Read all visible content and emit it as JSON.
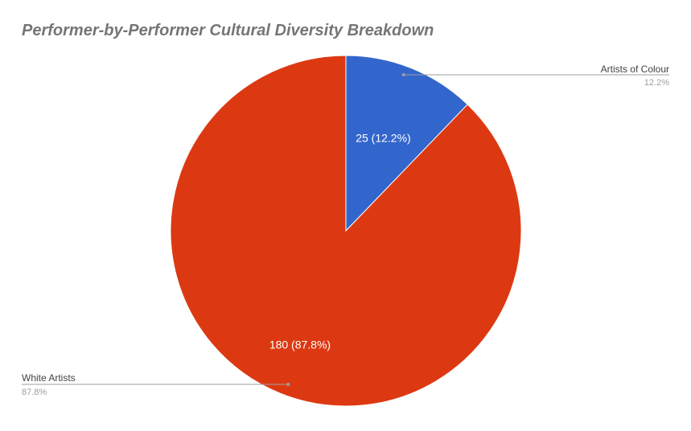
{
  "chart_data": {
    "type": "pie",
    "title": "Performer-by-Performer Cultural Diversity Breakdown",
    "slices": [
      {
        "label": "Artists of Colour",
        "value": 25,
        "percent": "12.2%",
        "slice_label": "25 (12.2%)",
        "color": "#3366cc"
      },
      {
        "label": "White Artists",
        "value": 180,
        "percent": "87.8%",
        "slice_label": "180 (87.8%)",
        "color": "#dc3912"
      }
    ],
    "start_angle_deg": 0,
    "direction": "clockwise",
    "legend": "labeled callout lines"
  },
  "colors": {
    "title": "#757575",
    "callout_line": "#9e9e9e",
    "callout_label": "#424242",
    "callout_percent": "#9e9e9e",
    "slice_text": "#ffffff"
  }
}
